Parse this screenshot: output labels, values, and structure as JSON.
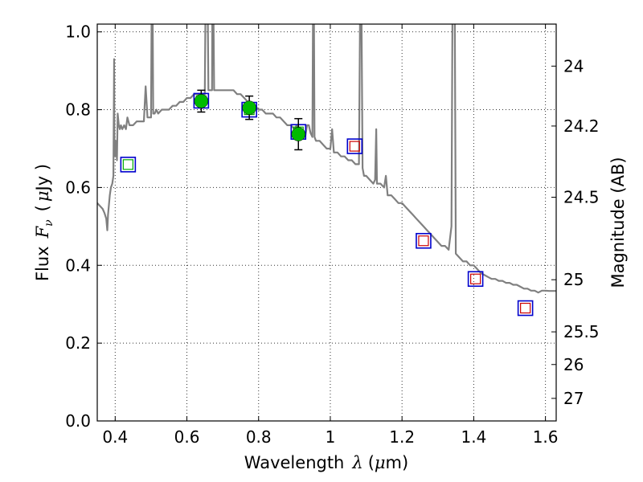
{
  "chart_data": {
    "type": "scatter",
    "title": "",
    "xlabel": {
      "main": "Wavelength",
      "symbol": "λ",
      "unit_open": "(",
      "unit_mu": "μ",
      "unit_close": "m)"
    },
    "ylabel": {
      "main": "Flux",
      "symbol": "F",
      "symbol_sub": "ν",
      "unit_open": "(",
      "unit_mu": "μ",
      "unit_close": "Jy )"
    },
    "y2label": "Magnitude (AB)",
    "xlim": [
      0.35,
      1.63
    ],
    "ylim": [
      0.0,
      1.02
    ],
    "grid": true,
    "xticks": [
      0.4,
      0.6,
      0.8,
      1.0,
      1.2,
      1.4,
      1.6
    ],
    "xtick_labels": [
      "0.4",
      "0.6",
      "0.8",
      "1",
      "1.2",
      "1.4",
      "1.6"
    ],
    "yticks": [
      0.0,
      0.2,
      0.4,
      0.6,
      0.8,
      1.0
    ],
    "ytick_labels": [
      "0.0",
      "0.2",
      "0.4",
      "0.6",
      "0.8",
      "1.0"
    ],
    "y2ticks": [
      {
        "label": "24",
        "flux": 0.912
      },
      {
        "label": "24.2",
        "flux": 0.758
      },
      {
        "label": "24.5",
        "flux": 0.575
      },
      {
        "label": "25",
        "flux": 0.363
      },
      {
        "label": "25.5",
        "flux": 0.229
      },
      {
        "label": "26",
        "flux": 0.145
      },
      {
        "label": "27",
        "flux": 0.058
      }
    ],
    "colors": {
      "spectrum": "#808080",
      "observed": "#00bb00",
      "model_box_outer": "#0000cc",
      "model_box_inner_red": "#cc0000",
      "model_box_inner_green": "#00aa00",
      "errorbar": "#000000"
    },
    "spectrum": [
      [
        0.35,
        0.56
      ],
      [
        0.36,
        0.55
      ],
      [
        0.365,
        0.545
      ],
      [
        0.37,
        0.535
      ],
      [
        0.375,
        0.52
      ],
      [
        0.378,
        0.49
      ],
      [
        0.38,
        0.53
      ],
      [
        0.385,
        0.58
      ],
      [
        0.388,
        0.6
      ],
      [
        0.392,
        0.61
      ],
      [
        0.395,
        0.63
      ],
      [
        0.397,
        0.93
      ],
      [
        0.398,
        0.7
      ],
      [
        0.4,
        0.68
      ],
      [
        0.403,
        0.72
      ],
      [
        0.405,
        0.67
      ],
      [
        0.407,
        0.79
      ],
      [
        0.41,
        0.76
      ],
      [
        0.413,
        0.75
      ],
      [
        0.416,
        0.76
      ],
      [
        0.42,
        0.75
      ],
      [
        0.425,
        0.76
      ],
      [
        0.43,
        0.75
      ],
      [
        0.434,
        0.78
      ],
      [
        0.44,
        0.76
      ],
      [
        0.45,
        0.76
      ],
      [
        0.46,
        0.77
      ],
      [
        0.47,
        0.77
      ],
      [
        0.48,
        0.77
      ],
      [
        0.485,
        0.86
      ],
      [
        0.49,
        0.78
      ],
      [
        0.495,
        0.78
      ],
      [
        0.5,
        0.78
      ],
      [
        0.503,
        1.3
      ],
      [
        0.506,
        0.79
      ],
      [
        0.51,
        0.79
      ],
      [
        0.515,
        0.8
      ],
      [
        0.52,
        0.79
      ],
      [
        0.53,
        0.8
      ],
      [
        0.54,
        0.8
      ],
      [
        0.55,
        0.8
      ],
      [
        0.56,
        0.81
      ],
      [
        0.57,
        0.81
      ],
      [
        0.58,
        0.82
      ],
      [
        0.59,
        0.82
      ],
      [
        0.6,
        0.83
      ],
      [
        0.61,
        0.83
      ],
      [
        0.62,
        0.84
      ],
      [
        0.63,
        0.84
      ],
      [
        0.64,
        0.84
      ],
      [
        0.65,
        0.84
      ],
      [
        0.654,
        1.3
      ],
      [
        0.656,
        1.3
      ],
      [
        0.66,
        0.85
      ],
      [
        0.67,
        0.85
      ],
      [
        0.672,
        1.3
      ],
      [
        0.676,
        0.85
      ],
      [
        0.69,
        0.85
      ],
      [
        0.7,
        0.85
      ],
      [
        0.71,
        0.85
      ],
      [
        0.72,
        0.85
      ],
      [
        0.73,
        0.85
      ],
      [
        0.74,
        0.84
      ],
      [
        0.75,
        0.84
      ],
      [
        0.76,
        0.83
      ],
      [
        0.77,
        0.82
      ],
      [
        0.78,
        0.81
      ],
      [
        0.79,
        0.81
      ],
      [
        0.8,
        0.8
      ],
      [
        0.81,
        0.8
      ],
      [
        0.82,
        0.79
      ],
      [
        0.83,
        0.79
      ],
      [
        0.84,
        0.79
      ],
      [
        0.85,
        0.78
      ],
      [
        0.86,
        0.78
      ],
      [
        0.87,
        0.77
      ],
      [
        0.88,
        0.76
      ],
      [
        0.89,
        0.76
      ],
      [
        0.9,
        0.75
      ],
      [
        0.906,
        0.76
      ],
      [
        0.91,
        0.75
      ],
      [
        0.915,
        0.74
      ],
      [
        0.92,
        0.74
      ],
      [
        0.925,
        0.74
      ],
      [
        0.93,
        0.73
      ],
      [
        0.935,
        0.76
      ],
      [
        0.94,
        0.76
      ],
      [
        0.945,
        0.74
      ],
      [
        0.95,
        0.73
      ],
      [
        0.953,
        1.3
      ],
      [
        0.956,
        0.73
      ],
      [
        0.96,
        0.72
      ],
      [
        0.97,
        0.72
      ],
      [
        0.98,
        0.71
      ],
      [
        0.99,
        0.7
      ],
      [
        1.0,
        0.7
      ],
      [
        1.005,
        0.75
      ],
      [
        1.01,
        0.69
      ],
      [
        1.02,
        0.69
      ],
      [
        1.03,
        0.68
      ],
      [
        1.04,
        0.68
      ],
      [
        1.05,
        0.67
      ],
      [
        1.06,
        0.67
      ],
      [
        1.07,
        0.66
      ],
      [
        1.08,
        0.66
      ],
      [
        1.085,
        1.3
      ],
      [
        1.09,
        0.65
      ],
      [
        1.094,
        0.63
      ],
      [
        1.1,
        0.63
      ],
      [
        1.11,
        0.62
      ],
      [
        1.12,
        0.61
      ],
      [
        1.125,
        0.62
      ],
      [
        1.128,
        0.75
      ],
      [
        1.13,
        0.61
      ],
      [
        1.14,
        0.61
      ],
      [
        1.15,
        0.6
      ],
      [
        1.155,
        0.63
      ],
      [
        1.16,
        0.58
      ],
      [
        1.17,
        0.58
      ],
      [
        1.18,
        0.57
      ],
      [
        1.19,
        0.56
      ],
      [
        1.2,
        0.56
      ],
      [
        1.21,
        0.55
      ],
      [
        1.22,
        0.54
      ],
      [
        1.23,
        0.53
      ],
      [
        1.24,
        0.52
      ],
      [
        1.25,
        0.51
      ],
      [
        1.26,
        0.5
      ],
      [
        1.27,
        0.49
      ],
      [
        1.28,
        0.48
      ],
      [
        1.29,
        0.47
      ],
      [
        1.3,
        0.46
      ],
      [
        1.31,
        0.45
      ],
      [
        1.32,
        0.45
      ],
      [
        1.33,
        0.44
      ],
      [
        1.338,
        0.5
      ],
      [
        1.342,
        1.3
      ],
      [
        1.346,
        1.3
      ],
      [
        1.35,
        0.43
      ],
      [
        1.36,
        0.42
      ],
      [
        1.37,
        0.41
      ],
      [
        1.38,
        0.41
      ],
      [
        1.39,
        0.4
      ],
      [
        1.4,
        0.4
      ],
      [
        1.41,
        0.39
      ],
      [
        1.42,
        0.38
      ],
      [
        1.43,
        0.375
      ],
      [
        1.44,
        0.37
      ],
      [
        1.45,
        0.365
      ],
      [
        1.46,
        0.365
      ],
      [
        1.47,
        0.36
      ],
      [
        1.48,
        0.36
      ],
      [
        1.49,
        0.355
      ],
      [
        1.5,
        0.355
      ],
      [
        1.51,
        0.35
      ],
      [
        1.52,
        0.35
      ],
      [
        1.53,
        0.345
      ],
      [
        1.54,
        0.34
      ],
      [
        1.55,
        0.34
      ],
      [
        1.56,
        0.335
      ],
      [
        1.57,
        0.335
      ],
      [
        1.58,
        0.33
      ],
      [
        1.59,
        0.335
      ],
      [
        1.6,
        0.335
      ],
      [
        1.61,
        0.334
      ],
      [
        1.62,
        0.334
      ],
      [
        1.63,
        0.334
      ]
    ],
    "model_points": [
      {
        "x": 0.436,
        "y": 0.659,
        "inner": "green"
      },
      {
        "x": 0.64,
        "y": 0.823,
        "inner": "green"
      },
      {
        "x": 0.774,
        "y": 0.8,
        "inner": "green"
      },
      {
        "x": 0.911,
        "y": 0.743,
        "inner": "green"
      },
      {
        "x": 1.068,
        "y": 0.706,
        "inner": "red"
      },
      {
        "x": 1.26,
        "y": 0.463,
        "inner": "red"
      },
      {
        "x": 1.405,
        "y": 0.365,
        "inner": "red"
      },
      {
        "x": 1.544,
        "y": 0.29,
        "inner": "red"
      }
    ],
    "observed_points": [
      {
        "x": 0.64,
        "y": 0.822,
        "err": 0.028
      },
      {
        "x": 0.774,
        "y": 0.805,
        "err": 0.03
      },
      {
        "x": 0.911,
        "y": 0.737,
        "err": 0.04
      }
    ]
  }
}
